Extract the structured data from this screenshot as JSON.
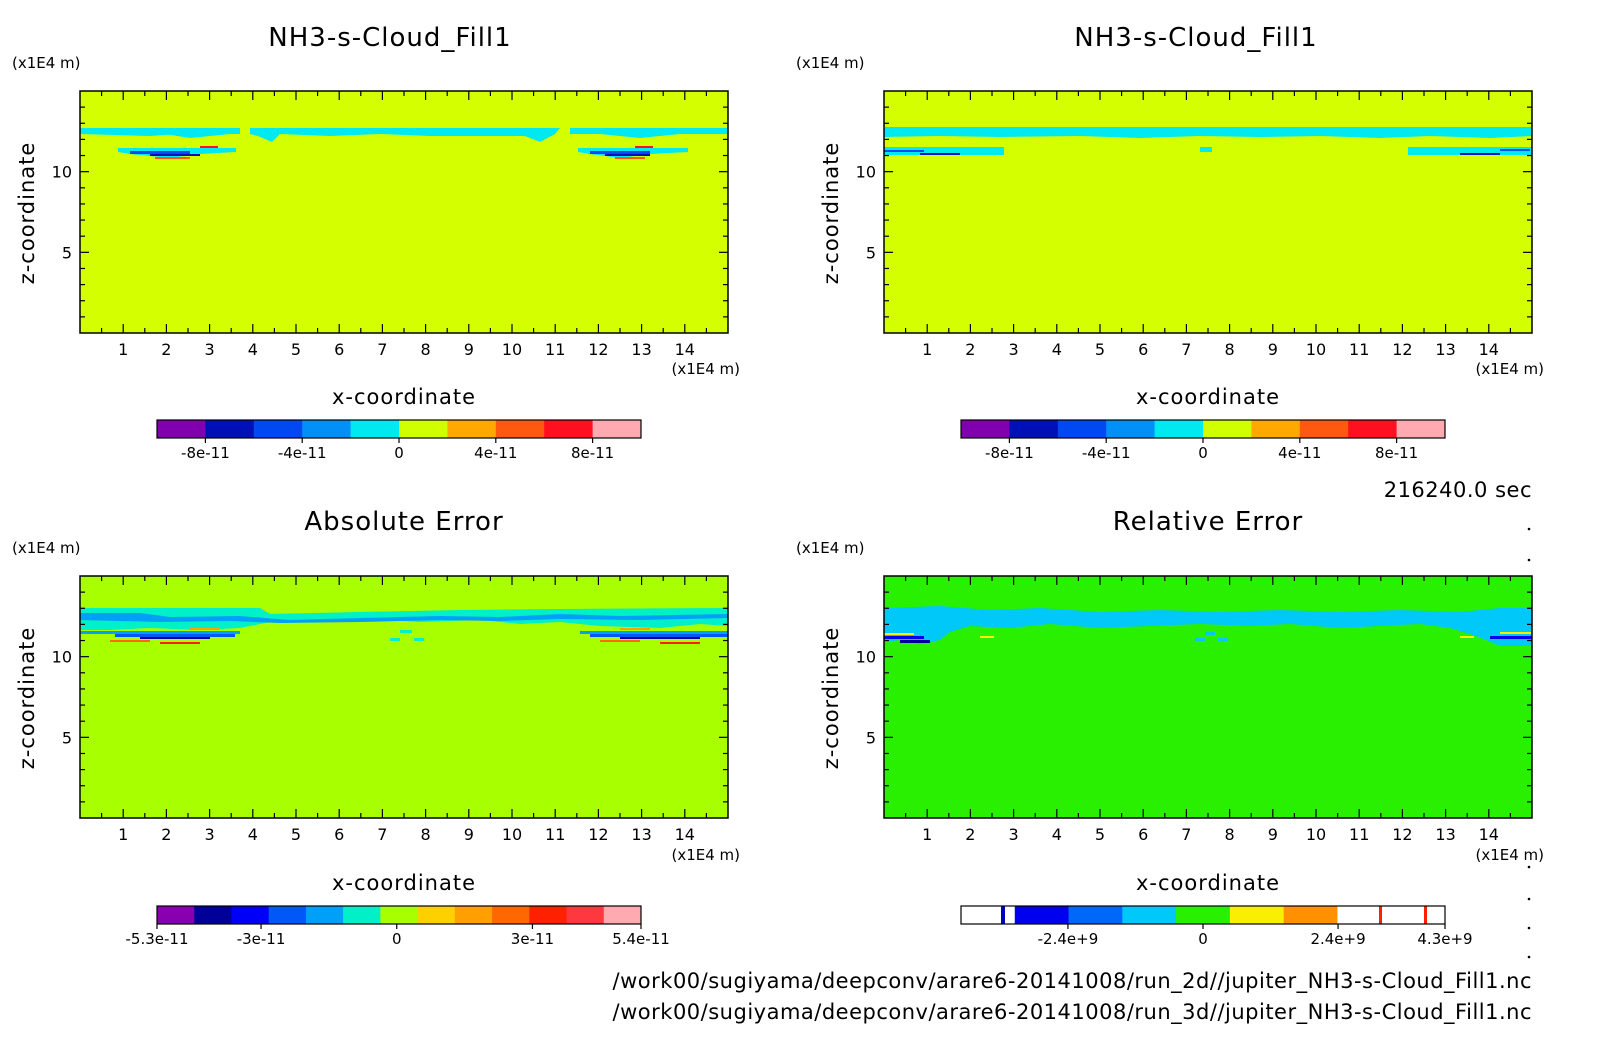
{
  "colors": {
    "cmap11": [
      "#8000b0",
      "#0010b8",
      "#0048f0",
      "#0090f8",
      "#00e8f0",
      "#d0ff00",
      "#ffa800",
      "#ff5810",
      "#ff1020",
      "#ffaab0"
    ],
    "cmap12": [
      "#8800b0",
      "#000098",
      "#0000f8",
      "#0058f8",
      "#00a0f8",
      "#00f0c8",
      "#a8ff00",
      "#ffd000",
      "#ffa000",
      "#ff6800",
      "#ff2000",
      "#ff3840",
      "#ffaab0"
    ],
    "cmapRel": [
      "#ffffff",
      "#0000f0",
      "#0068f8",
      "#00c8f8",
      "#28f000",
      "#f8f000",
      "#ff9000",
      "#ffffff",
      "#ffffff"
    ],
    "yellowBg": "#d4ff00",
    "limeBg": "#a8ff00",
    "greenBg": "#28f000",
    "cyan": "#00e8f0"
  },
  "chart_data": [
    {
      "type": "heatmap",
      "title": "NH3-s-Cloud_Fill1",
      "xlabel": "x-coordinate",
      "ylabel": "z-coordinate",
      "x_unit": "(x1E4 m)",
      "y_unit": "(x1E4 m)",
      "xlim": [
        0,
        15
      ],
      "ylim": [
        0,
        15
      ],
      "x_ticks": [
        "1",
        "2",
        "3",
        "4",
        "5",
        "6",
        "7",
        "8",
        "9",
        "10",
        "11",
        "12",
        "13",
        "14"
      ],
      "y_ticks": [
        "5",
        "10"
      ],
      "colorbar": {
        "ticks": [
          "-8e-11",
          "-4e-11",
          "0",
          "4e-11",
          "8e-11"
        ],
        "range": [
          -1e-10,
          1e-10
        ]
      }
    },
    {
      "type": "heatmap",
      "title": "NH3-s-Cloud_Fill1",
      "xlabel": "x-coordinate",
      "ylabel": "z-coordinate",
      "x_unit": "(x1E4 m)",
      "y_unit": "(x1E4 m)",
      "xlim": [
        0,
        15
      ],
      "ylim": [
        0,
        15
      ],
      "x_ticks": [
        "1",
        "2",
        "3",
        "4",
        "5",
        "6",
        "7",
        "8",
        "9",
        "10",
        "11",
        "12",
        "13",
        "14"
      ],
      "y_ticks": [
        "5",
        "10"
      ],
      "colorbar": {
        "ticks": [
          "-8e-11",
          "-4e-11",
          "0",
          "4e-11",
          "8e-11"
        ],
        "range": [
          -1e-10,
          1e-10
        ]
      }
    },
    {
      "type": "heatmap",
      "title": "Absolute Error",
      "xlabel": "x-coordinate",
      "ylabel": "z-coordinate",
      "x_unit": "(x1E4 m)",
      "y_unit": "(x1E4 m)",
      "xlim": [
        0,
        15
      ],
      "ylim": [
        0,
        15
      ],
      "x_ticks": [
        "1",
        "2",
        "3",
        "4",
        "5",
        "6",
        "7",
        "8",
        "9",
        "10",
        "11",
        "12",
        "13",
        "14"
      ],
      "y_ticks": [
        "5",
        "10"
      ],
      "colorbar": {
        "ticks": [
          "-5.3e-11",
          "-3e-11",
          "0",
          "3e-11",
          "5.4e-11"
        ],
        "range": [
          -5.3e-11,
          5.4e-11
        ]
      }
    },
    {
      "type": "heatmap",
      "title": "Relative Error",
      "xlabel": "x-coordinate",
      "ylabel": "z-coordinate",
      "x_unit": "(x1E4 m)",
      "y_unit": "(x1E4 m)",
      "xlim": [
        0,
        15
      ],
      "ylim": [
        0,
        15
      ],
      "x_ticks": [
        "1",
        "2",
        "3",
        "4",
        "5",
        "6",
        "7",
        "8",
        "9",
        "10",
        "11",
        "12",
        "13",
        "14"
      ],
      "y_ticks": [
        "5",
        "10"
      ],
      "colorbar": {
        "ticks": [
          "-2.4e+9",
          "0",
          "2.4e+9",
          "4.3e+9"
        ],
        "range": [
          -4300000000.0,
          4300000000.0
        ]
      }
    }
  ],
  "time_label": "216240.0 sec",
  "file_paths": [
    "/work00/sugiyama/deepconv/arare6-20141008/run_2d//jupiter_NH3-s-Cloud_Fill1.nc",
    "/work00/sugiyama/deepconv/arare6-20141008/run_3d//jupiter_NH3-s-Cloud_Fill1.nc"
  ]
}
